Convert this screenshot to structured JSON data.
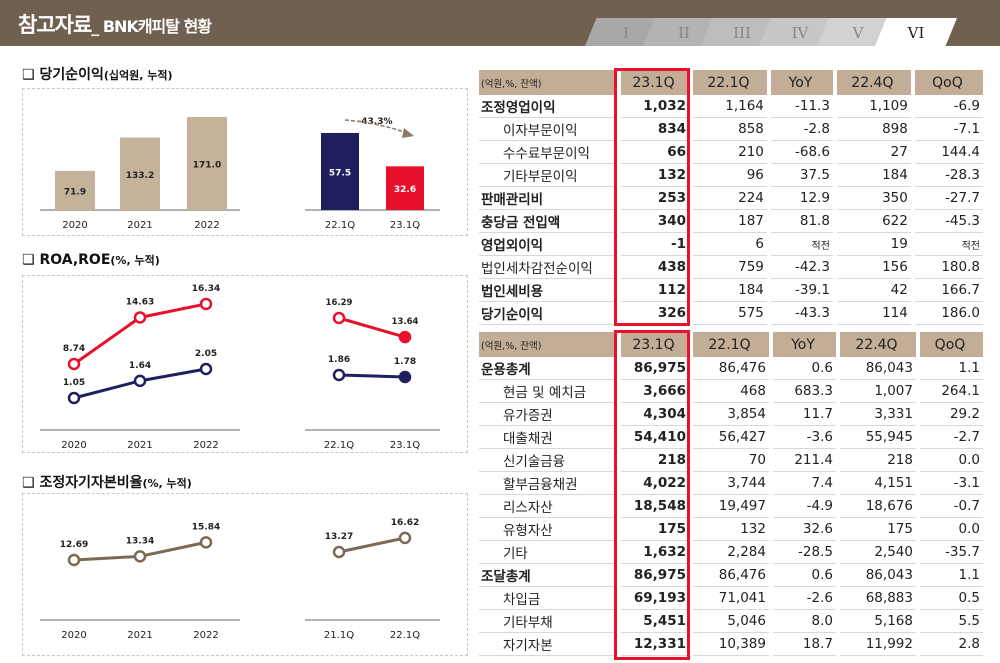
{
  "header": {
    "title": "참고자료",
    "subtitle": "_ BNK캐피탈 현황",
    "tabs": [
      "I",
      "II",
      "III",
      "IV",
      "V",
      "VI"
    ],
    "active_tab": "VI"
  },
  "colors": {
    "header": "#6f604f",
    "table_header": "#c3ad96",
    "highlight": "#e8112d",
    "bar": "#c4b29b",
    "roe": "#e8112d",
    "roa": "#1f1f5f",
    "capital": "#7b6a55"
  },
  "sections": {
    "net_income": {
      "title": "당기순이익",
      "unit": "(십억원, 누적)"
    },
    "roa_roe": {
      "title": "ROA,ROE",
      "unit": "(%, 누적)"
    },
    "capital": {
      "title": "조정자기자본비율",
      "unit": "(%, 누적)"
    }
  },
  "chart_data": [
    {
      "type": "bar",
      "title": "당기순이익",
      "panels": [
        {
          "categories": [
            "2020",
            "2021",
            "2022"
          ],
          "values": [
            71.9,
            133.2,
            171.0
          ],
          "colors": [
            "#c4b29b",
            "#c4b29b",
            "#c4b29b"
          ]
        },
        {
          "categories": [
            "22.1Q",
            "23.1Q"
          ],
          "values": [
            57.5,
            32.6
          ],
          "colors": [
            "#1f1f5f",
            "#e8112d"
          ],
          "annotation": "-43.3%"
        }
      ]
    },
    {
      "type": "line",
      "title": "ROA,ROE",
      "panels": [
        {
          "categories": [
            "2020",
            "2021",
            "2022"
          ],
          "series": [
            {
              "values": [
                8.74,
                14.63,
                16.34
              ],
              "color": "#e8112d"
            },
            {
              "values": [
                1.05,
                1.64,
                2.05
              ],
              "color": "#1f1f5f"
            }
          ]
        },
        {
          "categories": [
            "22.1Q",
            "23.1Q"
          ],
          "series": [
            {
              "values": [
                16.29,
                13.64
              ],
              "color": "#e8112d"
            },
            {
              "values": [
                1.86,
                1.78
              ],
              "color": "#1f1f5f"
            }
          ]
        }
      ]
    },
    {
      "type": "line",
      "title": "조정자기자본비율",
      "panels": [
        {
          "categories": [
            "2020",
            "2021",
            "2022"
          ],
          "series": [
            {
              "values": [
                12.69,
                13.34,
                15.84
              ],
              "color": "#7b6a55"
            }
          ]
        },
        {
          "categories": [
            "21.1Q",
            "22.1Q"
          ],
          "series": [
            {
              "values": [
                13.27,
                16.62
              ],
              "color": "#7b6a55"
            }
          ]
        }
      ]
    }
  ],
  "table1": {
    "unit": "(억원,%, 잔액)",
    "columns": [
      "23.1Q",
      "22.1Q",
      "YoY",
      "22.4Q",
      "QoQ"
    ],
    "rows": [
      {
        "label": "조정영업이익",
        "bold": true,
        "values": [
          "1,032",
          "1,164",
          "-11.3",
          "1,109",
          "-6.9"
        ]
      },
      {
        "label": "이자부문이익",
        "indent": true,
        "values": [
          "834",
          "858",
          "-2.8",
          "898",
          "-7.1"
        ]
      },
      {
        "label": "수수료부문이익",
        "indent": true,
        "values": [
          "66",
          "210",
          "-68.6",
          "27",
          "144.4"
        ]
      },
      {
        "label": "기타부문이익",
        "indent": true,
        "values": [
          "132",
          "96",
          "37.5",
          "184",
          "-28.3"
        ]
      },
      {
        "label": "판매관리비",
        "bold": true,
        "values": [
          "253",
          "224",
          "12.9",
          "350",
          "-27.7"
        ]
      },
      {
        "label": "충당금 전입액",
        "bold": true,
        "values": [
          "340",
          "187",
          "81.8",
          "622",
          "-45.3"
        ]
      },
      {
        "label": "영업외이익",
        "bold": true,
        "values": [
          "-1",
          "6",
          "적전",
          "19",
          "적전"
        ]
      },
      {
        "label": "법인세차감전순이익",
        "values": [
          "438",
          "759",
          "-42.3",
          "156",
          "180.8"
        ]
      },
      {
        "label": "법인세비용",
        "bold": true,
        "values": [
          "112",
          "184",
          "-39.1",
          "42",
          "166.7"
        ]
      },
      {
        "label": "당기순이익",
        "bold": true,
        "values": [
          "326",
          "575",
          "-43.3",
          "114",
          "186.0"
        ]
      }
    ]
  },
  "table2": {
    "unit": "(억원,%, 잔액)",
    "columns": [
      "23.1Q",
      "22.1Q",
      "YoY",
      "22.4Q",
      "QoQ"
    ],
    "rows": [
      {
        "label": "운용총계",
        "bold": true,
        "values": [
          "86,975",
          "86,476",
          "0.6",
          "86,043",
          "1.1"
        ]
      },
      {
        "label": "현금 및 예치금",
        "indent": true,
        "values": [
          "3,666",
          "468",
          "683.3",
          "1,007",
          "264.1"
        ]
      },
      {
        "label": "유가증권",
        "indent": true,
        "values": [
          "4,304",
          "3,854",
          "11.7",
          "3,331",
          "29.2"
        ]
      },
      {
        "label": "대출채권",
        "indent": true,
        "values": [
          "54,410",
          "56,427",
          "-3.6",
          "55,945",
          "-2.7"
        ]
      },
      {
        "label": "신기술금융",
        "indent": true,
        "values": [
          "218",
          "70",
          "211.4",
          "218",
          "0.0"
        ]
      },
      {
        "label": "할부금융채권",
        "indent": true,
        "values": [
          "4,022",
          "3,744",
          "7.4",
          "4,151",
          "-3.1"
        ]
      },
      {
        "label": "리스자산",
        "indent": true,
        "values": [
          "18,548",
          "19,497",
          "-4.9",
          "18,676",
          "-0.7"
        ]
      },
      {
        "label": "유형자산",
        "indent": true,
        "values": [
          "175",
          "132",
          "32.6",
          "175",
          "0.0"
        ]
      },
      {
        "label": "기타",
        "indent": true,
        "values": [
          "1,632",
          "2,284",
          "-28.5",
          "2,540",
          "-35.7"
        ]
      },
      {
        "label": "조달총계",
        "bold": true,
        "values": [
          "86,975",
          "86,476",
          "0.6",
          "86,043",
          "1.1"
        ]
      },
      {
        "label": "차입금",
        "indent": true,
        "values": [
          "69,193",
          "71,041",
          "-2.6",
          "68,883",
          "0.5"
        ]
      },
      {
        "label": "기타부채",
        "indent": true,
        "values": [
          "5,451",
          "5,046",
          "8.0",
          "5,168",
          "5.5"
        ]
      },
      {
        "label": "자기자본",
        "indent": true,
        "values": [
          "12,331",
          "10,389",
          "18.7",
          "11,992",
          "2.8"
        ]
      }
    ]
  }
}
